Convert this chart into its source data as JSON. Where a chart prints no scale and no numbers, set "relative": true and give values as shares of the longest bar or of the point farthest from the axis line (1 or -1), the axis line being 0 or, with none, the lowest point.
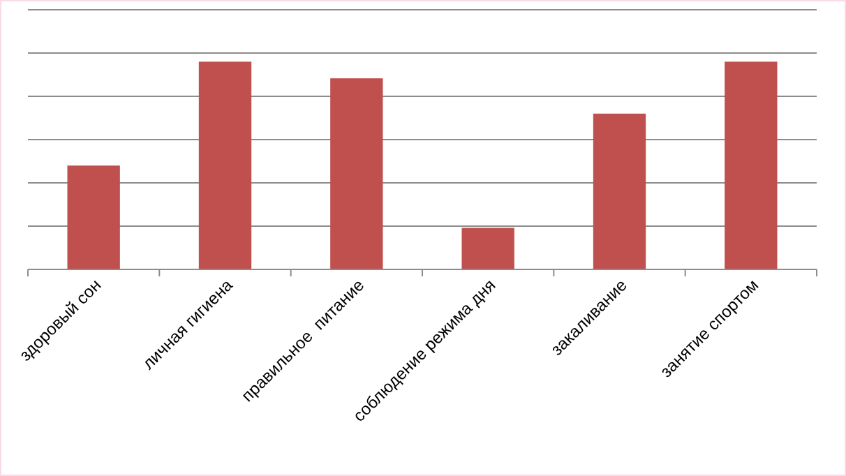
{
  "chart_data": {
    "type": "bar",
    "relative": true,
    "categories": [
      "здоровый сон",
      "личная гигиена",
      "правильное  питание",
      "соблюдение режима дня",
      "закаливание",
      "занятие спортом"
    ],
    "values": [
      0.5,
      1,
      0.92,
      0.2,
      0.75,
      1
    ],
    "color": "#c0504d",
    "grid": true
  }
}
